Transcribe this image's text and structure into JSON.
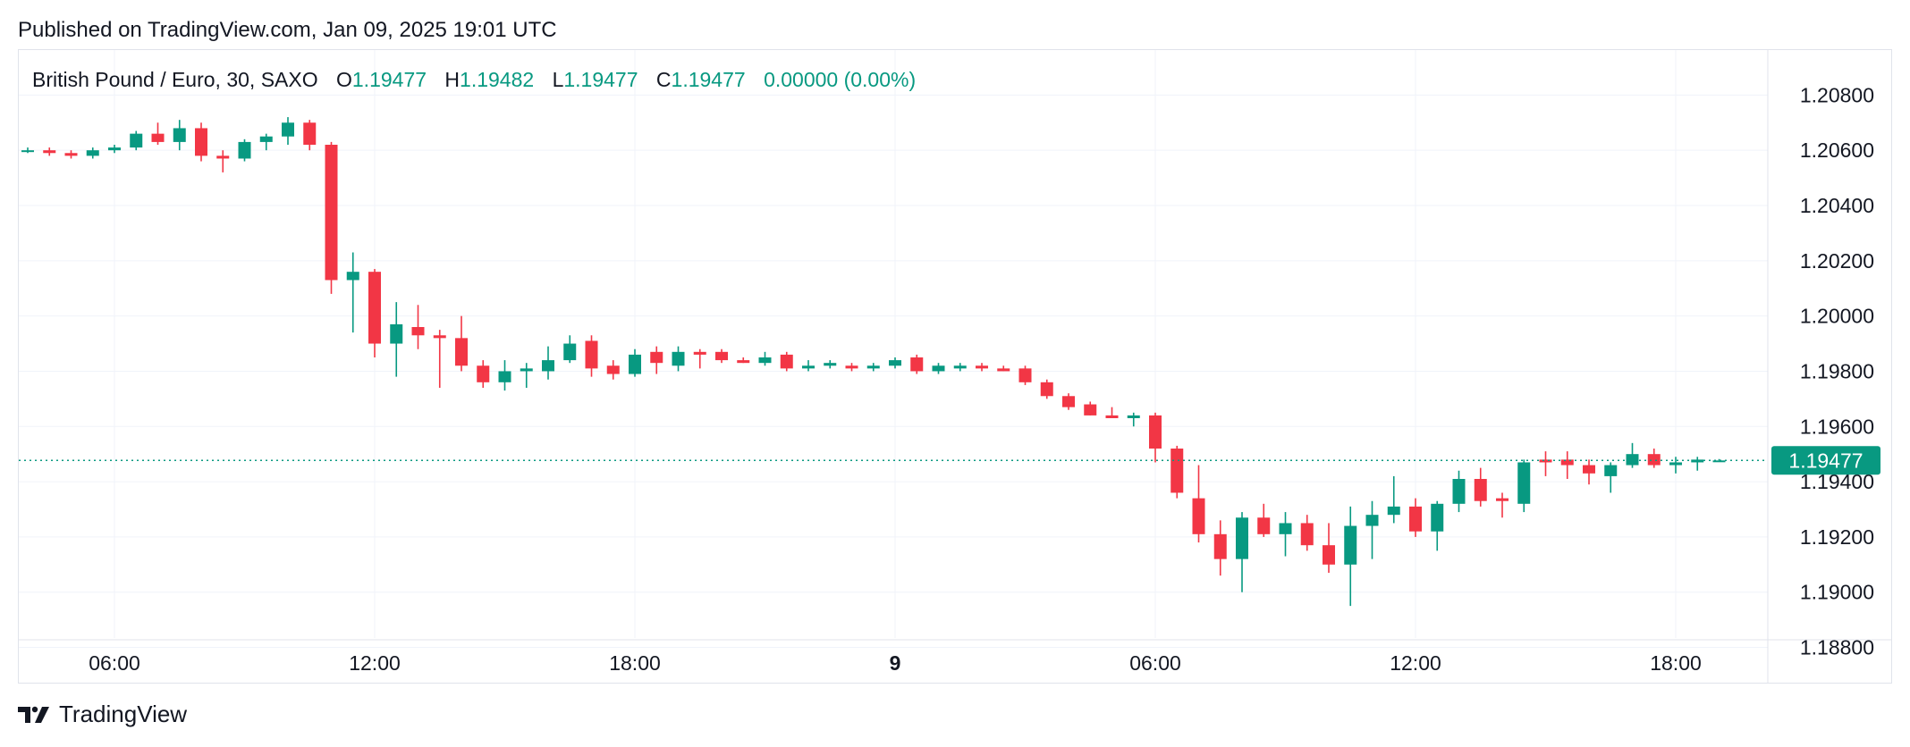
{
  "header": {
    "published": "Published on TradingView.com, Jan 09, 2025 19:01 UTC"
  },
  "legend": {
    "symbol": "British Pound / Euro, 30, SAXO",
    "open_key": "O",
    "open": "1.19477",
    "high_key": "H",
    "high": "1.19482",
    "low_key": "L",
    "low": "1.19477",
    "close_key": "C",
    "close": "1.19477",
    "change": "0.00000 (0.00%)"
  },
  "footer": {
    "brand": "TradingView",
    "logo_icon": "tradingview-logo-icon"
  },
  "colors": {
    "up": "#089981",
    "down": "#f23645",
    "grid": "#f0f3fa",
    "price_line": "#089981"
  },
  "chart_data": {
    "type": "candlestick",
    "timeframe": "30",
    "y_ticks": [
      "1.20800",
      "1.20600",
      "1.20400",
      "1.20200",
      "1.20000",
      "1.19800",
      "1.19600",
      "1.19400",
      "1.19200",
      "1.19000",
      "1.18800"
    ],
    "x_ticks": [
      {
        "label": "06:00",
        "bar": 4
      },
      {
        "label": "12:00",
        "bar": 16
      },
      {
        "label": "18:00",
        "bar": 28
      },
      {
        "label": "9",
        "bar": 40,
        "bold": true
      },
      {
        "label": "06:00",
        "bar": 52
      },
      {
        "label": "12:00",
        "bar": 64
      },
      {
        "label": "18:00",
        "bar": 76
      }
    ],
    "ylim": [
      1.1875,
      1.2095
    ],
    "last_price": "1.19477",
    "last_price_value": 1.19477,
    "grid": true,
    "candles": [
      [
        1.206,
        1.2061,
        1.2059,
        1.206
      ],
      [
        1.206,
        1.2061,
        1.2058,
        1.2059
      ],
      [
        1.2059,
        1.206,
        1.2057,
        1.2058
      ],
      [
        1.2058,
        1.2061,
        1.2057,
        1.206
      ],
      [
        1.206,
        1.2062,
        1.2059,
        1.2061
      ],
      [
        1.2061,
        1.2067,
        1.206,
        1.2066
      ],
      [
        1.2066,
        1.207,
        1.2062,
        1.2063
      ],
      [
        1.2063,
        1.2071,
        1.206,
        1.2068
      ],
      [
        1.2068,
        1.207,
        1.2056,
        1.2058
      ],
      [
        1.2058,
        1.206,
        1.2052,
        1.2057
      ],
      [
        1.2057,
        1.2064,
        1.2056,
        1.2063
      ],
      [
        1.2063,
        1.2066,
        1.206,
        1.2065
      ],
      [
        1.2065,
        1.2072,
        1.2062,
        1.207
      ],
      [
        1.207,
        1.2071,
        1.206,
        1.2062
      ],
      [
        1.2062,
        1.2063,
        1.2008,
        1.2013
      ],
      [
        1.2013,
        1.2023,
        1.1994,
        1.2016
      ],
      [
        1.2016,
        1.2017,
        1.1985,
        1.199
      ],
      [
        1.199,
        1.2005,
        1.1978,
        1.1997
      ],
      [
        1.1996,
        1.2004,
        1.1988,
        1.1993
      ],
      [
        1.1993,
        1.1995,
        1.1974,
        1.1992
      ],
      [
        1.1992,
        1.2,
        1.198,
        1.1982
      ],
      [
        1.1982,
        1.1984,
        1.1974,
        1.1976
      ],
      [
        1.1976,
        1.1984,
        1.1973,
        1.198
      ],
      [
        1.198,
        1.1983,
        1.1974,
        1.1981
      ],
      [
        1.198,
        1.1989,
        1.1977,
        1.1984
      ],
      [
        1.1984,
        1.1993,
        1.1983,
        1.199
      ],
      [
        1.1991,
        1.1993,
        1.1978,
        1.1981
      ],
      [
        1.1982,
        1.1984,
        1.1977,
        1.1979
      ],
      [
        1.1979,
        1.1988,
        1.1978,
        1.1986
      ],
      [
        1.1987,
        1.1989,
        1.1979,
        1.1983
      ],
      [
        1.1982,
        1.1989,
        1.198,
        1.1987
      ],
      [
        1.1987,
        1.1988,
        1.1981,
        1.1986
      ],
      [
        1.1987,
        1.1988,
        1.1983,
        1.1984
      ],
      [
        1.1984,
        1.1985,
        1.1983,
        1.1983
      ],
      [
        1.1983,
        1.1987,
        1.1982,
        1.1985
      ],
      [
        1.1986,
        1.1987,
        1.198,
        1.1981
      ],
      [
        1.1981,
        1.1984,
        1.198,
        1.1982
      ],
      [
        1.1982,
        1.1984,
        1.1981,
        1.1983
      ],
      [
        1.1982,
        1.1983,
        1.198,
        1.1981
      ],
      [
        1.1981,
        1.1983,
        1.198,
        1.1982
      ],
      [
        1.1982,
        1.1985,
        1.1981,
        1.1984
      ],
      [
        1.1985,
        1.1986,
        1.1979,
        1.198
      ],
      [
        1.198,
        1.1983,
        1.1979,
        1.1982
      ],
      [
        1.1981,
        1.1983,
        1.198,
        1.1982
      ],
      [
        1.1982,
        1.1983,
        1.198,
        1.1981
      ],
      [
        1.1981,
        1.1982,
        1.198,
        1.198
      ],
      [
        1.1981,
        1.1982,
        1.1975,
        1.1976
      ],
      [
        1.1976,
        1.1977,
        1.197,
        1.1971
      ],
      [
        1.1971,
        1.1972,
        1.1966,
        1.1967
      ],
      [
        1.1968,
        1.1969,
        1.1964,
        1.1964
      ],
      [
        1.1964,
        1.1967,
        1.1963,
        1.1963
      ],
      [
        1.1963,
        1.1965,
        1.196,
        1.1964
      ],
      [
        1.1964,
        1.1965,
        1.1947,
        1.1952
      ],
      [
        1.1952,
        1.1953,
        1.1934,
        1.1936
      ],
      [
        1.1934,
        1.1946,
        1.1918,
        1.1921
      ],
      [
        1.1921,
        1.1926,
        1.1906,
        1.1912
      ],
      [
        1.1912,
        1.1929,
        1.19,
        1.1927
      ],
      [
        1.1927,
        1.1932,
        1.192,
        1.1921
      ],
      [
        1.1921,
        1.1929,
        1.1913,
        1.1925
      ],
      [
        1.1925,
        1.1928,
        1.1915,
        1.1917
      ],
      [
        1.1917,
        1.1925,
        1.1907,
        1.191
      ],
      [
        1.191,
        1.1931,
        1.1895,
        1.1924
      ],
      [
        1.1924,
        1.1933,
        1.1912,
        1.1928
      ],
      [
        1.1928,
        1.1942,
        1.1925,
        1.1931
      ],
      [
        1.1931,
        1.1934,
        1.192,
        1.1922
      ],
      [
        1.1922,
        1.1933,
        1.1915,
        1.1932
      ],
      [
        1.1932,
        1.1944,
        1.1929,
        1.1941
      ],
      [
        1.1941,
        1.1945,
        1.1931,
        1.1933
      ],
      [
        1.1934,
        1.1936,
        1.1927,
        1.1933
      ],
      [
        1.1932,
        1.1948,
        1.1929,
        1.1947
      ],
      [
        1.1948,
        1.1951,
        1.1942,
        1.1947
      ],
      [
        1.1948,
        1.1951,
        1.1941,
        1.1946
      ],
      [
        1.1946,
        1.1948,
        1.1939,
        1.1943
      ],
      [
        1.1942,
        1.1947,
        1.1936,
        1.1946
      ],
      [
        1.1946,
        1.1954,
        1.1945,
        1.195
      ],
      [
        1.195,
        1.1952,
        1.1945,
        1.1946
      ],
      [
        1.1946,
        1.1949,
        1.1943,
        1.1947
      ],
      [
        1.1947,
        1.1949,
        1.1944,
        1.1948
      ],
      [
        1.19477,
        1.19482,
        1.19477,
        1.19477
      ]
    ]
  }
}
